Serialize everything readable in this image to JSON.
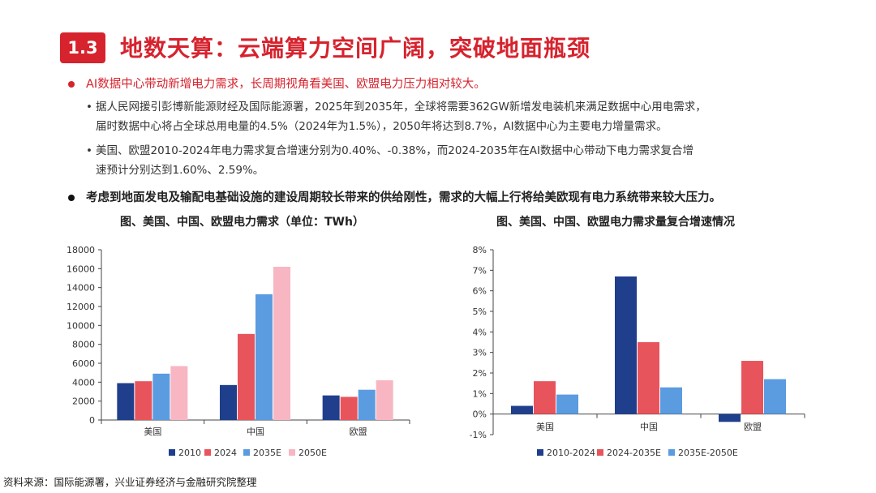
{
  "section": {
    "number": "1.3",
    "title": "地数天算：云端算力空间广阔，突破地面瓶颈"
  },
  "bullets": {
    "b1": "AI数据中心带动新增电力需求，长周期视角看美国、欧盟电力压力相对较大。",
    "sub1_line1": "据人民网援引彭博新能源财经及国际能源署，2025年到2035年，全球将需要362GW新增发电装机来满足数据中心用电需求，",
    "sub1_line2": "届时数据中心将占全球总用电量的4.5%（2024年为1.5%），2050年将达到8.7%，AI数据中心为主要电力增量需求。",
    "sub2_line1": "美国、欧盟2010-2024年电力需求复合增速分别为0.40%、-0.38%，而2024-2035年在AI数据中心带动下电力需求复合增",
    "sub2_line2": "速预计分别达到1.60%、2.59%。",
    "b2": "考虑到地面发电及输配电基础设施的建设周期较长带来的供给刚性，需求的大幅上行将给美欧现有电力系统带来较大压力。",
    "sub_marker": "•"
  },
  "source": "资料来源：国际能源署，兴业证券经济与金融研究院整理",
  "chart_data": [
    {
      "type": "bar",
      "title": "图、美国、中国、欧盟电力需求（单位：TWh）",
      "categories": [
        "美国",
        "中国",
        "欧盟"
      ],
      "series": [
        {
          "name": "2010",
          "values": [
            3900,
            3700,
            2600
          ],
          "color": "#1f3f8c"
        },
        {
          "name": "2024",
          "values": [
            4100,
            9100,
            2450
          ],
          "color": "#e8545c"
        },
        {
          "name": "2035E",
          "values": [
            4900,
            13300,
            3200
          ],
          "color": "#5b9be0"
        },
        {
          "name": "2050E",
          "values": [
            5700,
            16200,
            4200
          ],
          "color": "#f7b6c2"
        }
      ],
      "yticks": [
        "0",
        "2000",
        "4000",
        "6000",
        "8000",
        "10000",
        "12000",
        "14000",
        "16000",
        "18000"
      ],
      "ylim": [
        0,
        18000
      ],
      "legend": "bottom"
    },
    {
      "type": "bar",
      "title": "图、美国、中国、欧盟电力需求量复合增速情况",
      "categories": [
        "美国",
        "中国",
        "欧盟"
      ],
      "series": [
        {
          "name": "2010-2024",
          "values": [
            0.4,
            6.7,
            -0.38
          ],
          "color": "#1f3f8c"
        },
        {
          "name": "2024-2035E",
          "values": [
            1.6,
            3.5,
            2.59
          ],
          "color": "#e8545c"
        },
        {
          "name": "2035E-2050E",
          "values": [
            0.95,
            1.3,
            1.7
          ],
          "color": "#5b9be0"
        }
      ],
      "yticks": [
        "-1%",
        "0%",
        "1%",
        "2%",
        "3%",
        "4%",
        "5%",
        "6%",
        "7%",
        "8%"
      ],
      "ylim": [
        -1,
        8
      ],
      "legend": "bottom"
    }
  ]
}
